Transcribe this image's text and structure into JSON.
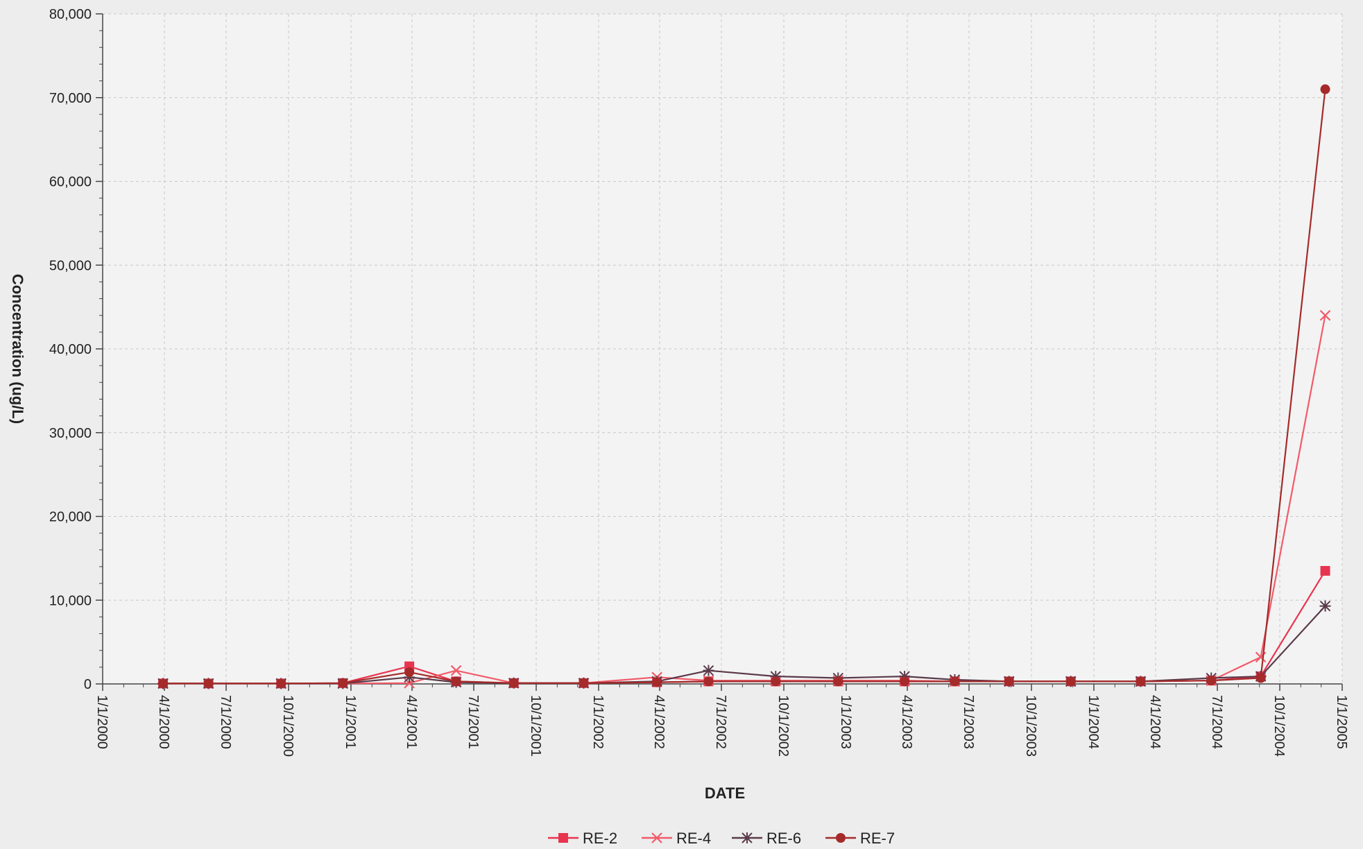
{
  "chart_data": {
    "type": "line",
    "title": "",
    "xlabel": "DATE",
    "ylabel": "Concentration (ug/L)",
    "grid": true,
    "legend_position": "bottom",
    "xlim": [
      "2000-01-01",
      "2005-01-01"
    ],
    "ylim": [
      0,
      80000
    ],
    "x_ticks": [
      "1/1/2000",
      "4/1/2000",
      "7/1/2000",
      "10/1/2000",
      "1/1/2001",
      "4/1/2001",
      "7/1/2001",
      "10/1/2001",
      "1/1/2002",
      "4/1/2002",
      "7/1/2002",
      "10/1/2002",
      "1/1/2003",
      "4/1/2003",
      "7/1/2003",
      "10/1/2003",
      "1/1/2004",
      "4/1/2004",
      "7/1/2004",
      "10/1/2004",
      "1/1/2005"
    ],
    "x_tick_values": [
      "2000-01-01",
      "2000-04-01",
      "2000-07-01",
      "2000-10-01",
      "2001-01-01",
      "2001-04-01",
      "2001-07-01",
      "2001-10-01",
      "2002-01-01",
      "2002-04-01",
      "2002-07-01",
      "2002-10-01",
      "2003-01-01",
      "2003-04-01",
      "2003-07-01",
      "2003-10-01",
      "2004-01-01",
      "2004-04-01",
      "2004-07-01",
      "2004-10-01",
      "2005-01-01"
    ],
    "y_ticks": [
      "0",
      "10,000",
      "20,000",
      "30,000",
      "40,000",
      "50,000",
      "60,000",
      "70,000",
      "80,000"
    ],
    "y_tick_values": [
      0,
      10000,
      20000,
      30000,
      40000,
      50000,
      60000,
      70000,
      80000
    ],
    "series": [
      {
        "name": "RE-2",
        "color": "#e8344f",
        "marker": "square",
        "x": [
          "2000-03-30",
          "2000-06-05",
          "2000-09-20",
          "2000-12-20",
          "2001-03-28",
          "2001-06-05",
          "2001-08-29",
          "2001-12-10",
          "2002-03-28",
          "2002-06-12",
          "2002-09-19",
          "2002-12-20",
          "2003-03-28",
          "2003-06-10",
          "2003-08-29",
          "2003-11-28",
          "2004-03-10",
          "2004-06-22",
          "2004-09-03",
          "2004-12-07"
        ],
        "values": [
          50,
          50,
          50,
          100,
          2100,
          300,
          100,
          100,
          200,
          300,
          300,
          300,
          300,
          300,
          300,
          300,
          300,
          400,
          900,
          13500
        ]
      },
      {
        "name": "RE-4",
        "color": "#f25a68",
        "marker": "x",
        "x": [
          "2000-03-30",
          "2000-06-05",
          "2000-09-20",
          "2000-12-20",
          "2001-03-28",
          "2001-06-05",
          "2001-08-29",
          "2001-12-10",
          "2002-03-28",
          "2002-06-12",
          "2002-09-19",
          "2002-12-20",
          "2003-03-28",
          "2003-06-10",
          "2003-08-29",
          "2003-11-28",
          "2004-03-10",
          "2004-06-22",
          "2004-09-03",
          "2004-12-07"
        ],
        "values": [
          50,
          50,
          50,
          50,
          100,
          1600,
          100,
          100,
          800,
          400,
          400,
          400,
          400,
          300,
          300,
          300,
          300,
          400,
          3200,
          44000
        ]
      },
      {
        "name": "RE-6",
        "color": "#5a3a4a",
        "marker": "star",
        "x": [
          "2000-03-30",
          "2000-06-05",
          "2000-09-20",
          "2000-12-20",
          "2001-03-28",
          "2001-06-05",
          "2001-08-29",
          "2001-12-10",
          "2002-03-28",
          "2002-06-12",
          "2002-09-19",
          "2002-12-20",
          "2003-03-28",
          "2003-06-10",
          "2003-08-29",
          "2003-11-28",
          "2004-03-10",
          "2004-06-22",
          "2004-09-03",
          "2004-12-07"
        ],
        "values": [
          50,
          50,
          50,
          50,
          800,
          200,
          100,
          100,
          300,
          1600,
          900,
          700,
          900,
          500,
          300,
          300,
          300,
          700,
          900,
          9300
        ]
      },
      {
        "name": "RE-7",
        "color": "#a52a2a",
        "marker": "circle",
        "x": [
          "2000-03-30",
          "2000-06-05",
          "2000-09-20",
          "2000-12-20",
          "2001-03-28",
          "2001-06-05",
          "2001-08-29",
          "2001-12-10",
          "2002-03-28",
          "2002-06-12",
          "2002-09-19",
          "2002-12-20",
          "2003-03-28",
          "2003-06-10",
          "2003-08-29",
          "2003-11-28",
          "2004-03-10",
          "2004-06-22",
          "2004-09-03",
          "2004-12-07"
        ],
        "values": [
          50,
          50,
          50,
          100,
          1400,
          300,
          100,
          100,
          200,
          300,
          300,
          300,
          300,
          300,
          300,
          300,
          300,
          400,
          700,
          71000
        ]
      }
    ]
  }
}
